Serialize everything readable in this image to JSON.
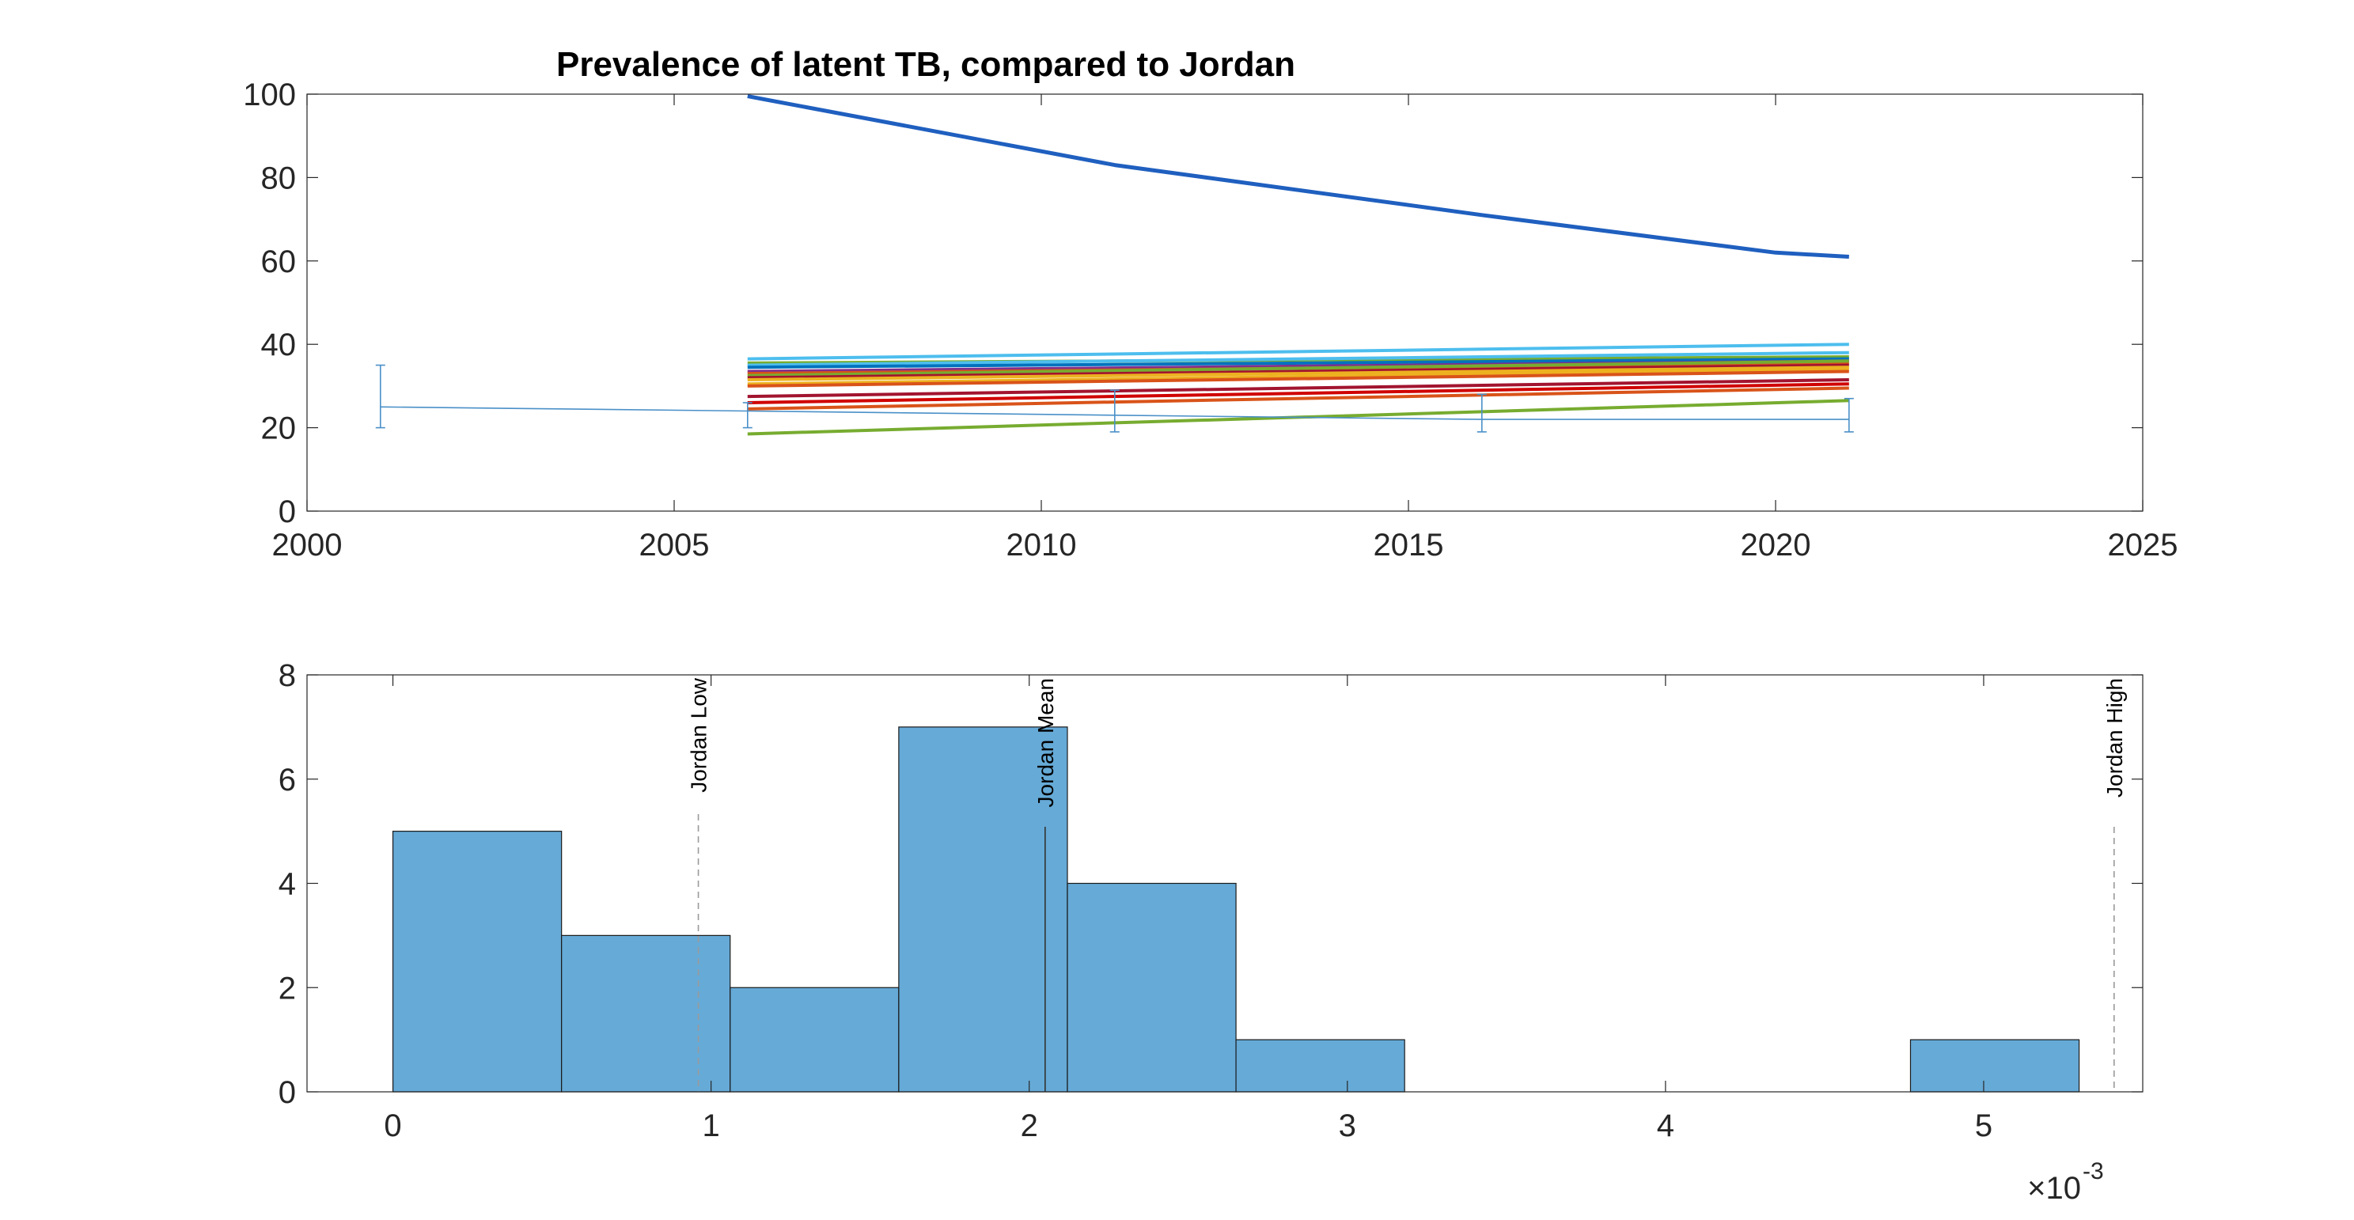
{
  "chart_data": [
    {
      "type": "line",
      "title": "Prevalence of latent TB, compared to Jordan",
      "xlabel": "",
      "ylabel": "",
      "xlim": [
        2000,
        2025
      ],
      "ylim": [
        0,
        100
      ],
      "xticks": [
        "2000",
        "2005",
        "2010",
        "2015",
        "2020",
        "2025"
      ],
      "yticks": [
        "0",
        "20",
        "40",
        "60",
        "80",
        "100"
      ],
      "grid": false,
      "legend": "none",
      "series": [
        {
          "color": "#1f5fbf",
          "x": [
            2006,
            2011,
            2016,
            2020,
            2021
          ],
          "y": [
            99.5,
            83,
            71,
            62,
            61
          ],
          "width": 5
        },
        {
          "color": "#4dbeee",
          "x": [
            2006,
            2021
          ],
          "y": [
            36.5,
            40
          ]
        },
        {
          "color": "#77ac30",
          "x": [
            2006,
            2021
          ],
          "y": [
            35.5,
            37
          ]
        },
        {
          "color": "#4dbeee",
          "x": [
            2006,
            2021
          ],
          "y": [
            35,
            38
          ]
        },
        {
          "color": "#0072bd",
          "x": [
            2006,
            2021
          ],
          "y": [
            34.5,
            36.5
          ]
        },
        {
          "color": "#7e2f8e",
          "x": [
            2006,
            2021
          ],
          "y": [
            33.5,
            36
          ]
        },
        {
          "color": "#d95319",
          "x": [
            2006,
            2021
          ],
          "y": [
            33,
            35.5
          ]
        },
        {
          "color": "#77ac30",
          "x": [
            2006,
            2021
          ],
          "y": [
            32.5,
            36
          ]
        },
        {
          "color": "#a2142f",
          "x": [
            2006,
            2021
          ],
          "y": [
            32,
            35
          ]
        },
        {
          "color": "#edb120",
          "x": [
            2006,
            2021
          ],
          "y": [
            31.5,
            34.5
          ]
        },
        {
          "color": "#edb120",
          "x": [
            2006,
            2021
          ],
          "y": [
            30.5,
            34
          ]
        },
        {
          "color": "#d95319",
          "x": [
            2006,
            2021
          ],
          "y": [
            30,
            33.5
          ]
        },
        {
          "color": "#a2142f",
          "x": [
            2006,
            2021
          ],
          "y": [
            27.5,
            31.5
          ]
        },
        {
          "color": "#d00000",
          "x": [
            2006,
            2021
          ],
          "y": [
            26,
            30.5
          ]
        },
        {
          "color": "#d95319",
          "x": [
            2006,
            2021
          ],
          "y": [
            24.5,
            29.5
          ]
        },
        {
          "color": "#77ac30",
          "x": [
            2006,
            2021
          ],
          "y": [
            18.5,
            26.5
          ]
        }
      ],
      "errorbar": {
        "color": "#4a90c8",
        "x": [
          2001,
          2006,
          2011,
          2016,
          2021
        ],
        "y": [
          25,
          24,
          23,
          22,
          22
        ],
        "low": [
          20,
          20,
          19,
          19,
          19
        ],
        "high": [
          35,
          26,
          29,
          28,
          27
        ]
      }
    },
    {
      "type": "bar",
      "subtype": "histogram",
      "xlim": [
        -0.27,
        5.5
      ],
      "ylim": [
        0,
        8
      ],
      "xticks": [
        "0",
        "1",
        "2",
        "3",
        "4",
        "5"
      ],
      "yticks": [
        "0",
        "2",
        "4",
        "6",
        "8"
      ],
      "exponent_label": "×10",
      "exponent_power": "-3",
      "x_scale": 0.001,
      "grid": false,
      "bin_edges": [
        0,
        0.53,
        1.06,
        1.59,
        2.12,
        2.65,
        3.18,
        3.71,
        4.24,
        4.77,
        5.3
      ],
      "counts": [
        5,
        3,
        2,
        7,
        4,
        1,
        0,
        0,
        0,
        1
      ],
      "bar_color": "#66aad7",
      "reference_lines": [
        {
          "label": "Jordan Low",
          "x": 0.96,
          "style": "dashed"
        },
        {
          "label": "Jordan Mean",
          "x": 2.05,
          "style": "solid"
        },
        {
          "label": "Jordan High",
          "x": 5.41,
          "style": "dashed"
        }
      ]
    }
  ]
}
